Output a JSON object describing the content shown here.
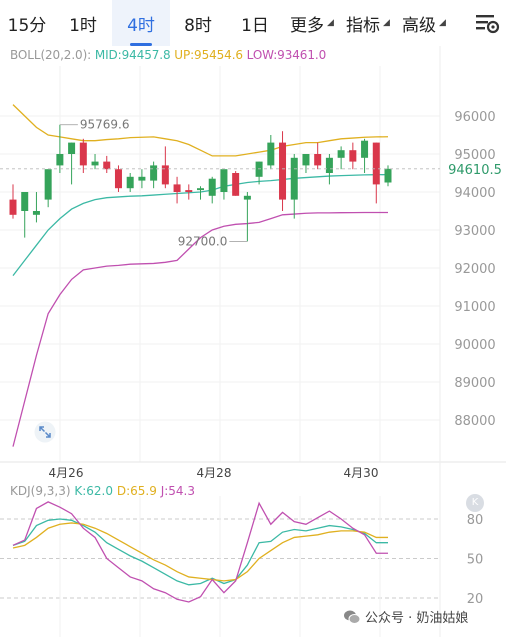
{
  "tabs": [
    {
      "label": "15分",
      "active": false,
      "dropdown": false
    },
    {
      "label": "1时",
      "active": false,
      "dropdown": false
    },
    {
      "label": "4时",
      "active": true,
      "dropdown": false
    },
    {
      "label": "8时",
      "active": false,
      "dropdown": false
    },
    {
      "label": "1日",
      "active": false,
      "dropdown": false
    },
    {
      "label": "更多",
      "active": false,
      "dropdown": true
    },
    {
      "label": "指标",
      "active": false,
      "dropdown": true
    },
    {
      "label": "高级",
      "active": false,
      "dropdown": true
    }
  ],
  "settings_icon": "chart-settings-icon",
  "boll": {
    "name": "BOLL(20,2.0):",
    "mid": "MID:94457.8",
    "up": "UP:95454.6",
    "low": "LOW:93461.0",
    "colors": {
      "name": "#999999",
      "mid": "#3cb9a5",
      "up": "#e0b020",
      "low": "#c050b0"
    }
  },
  "kdj": {
    "name": "KDJ(9,3,3)",
    "k": "K:62.0",
    "d": "D:65.9",
    "j": "J:54.3",
    "colors": {
      "k": "#3cb9a5",
      "d": "#e0b020",
      "j": "#c050b0"
    }
  },
  "price_axis": {
    "labels": [
      "96000",
      "95000",
      "94000",
      "93000",
      "92000",
      "91000",
      "90000",
      "89000",
      "88000"
    ]
  },
  "kdj_axis": {
    "labels": [
      "80",
      "50",
      "20"
    ]
  },
  "date_labels": [
    "4月26",
    "4月28",
    "4月30"
  ],
  "annotations": {
    "high": "95769.6",
    "low": "92700.0"
  },
  "current_price": "94610.5",
  "watermark": {
    "text": "公众号 · 奶油姑娘",
    "icon": "wechat-icon"
  },
  "colors": {
    "up": "#35a35a",
    "down": "#d9374b",
    "accent": "#2f6fe0"
  },
  "chart_data": [
    {
      "type": "candlestick",
      "title": "",
      "ylim": [
        87500,
        96400
      ],
      "x_ticks": [
        "4月26",
        "4月28",
        "4月30"
      ],
      "candles": [
        {
          "o": 93800,
          "h": 94200,
          "l": 93300,
          "c": 93400
        },
        {
          "o": 93500,
          "h": 94000,
          "l": 92800,
          "c": 94000
        },
        {
          "o": 93400,
          "h": 94000,
          "l": 93200,
          "c": 93500
        },
        {
          "o": 93800,
          "h": 94600,
          "l": 93600,
          "c": 94600
        },
        {
          "o": 94700,
          "h": 95770,
          "l": 94500,
          "c": 95000
        },
        {
          "o": 95000,
          "h": 95300,
          "l": 94200,
          "c": 95300
        },
        {
          "o": 95300,
          "h": 95400,
          "l": 94500,
          "c": 94700
        },
        {
          "o": 94700,
          "h": 95000,
          "l": 94600,
          "c": 94800
        },
        {
          "o": 94800,
          "h": 94950,
          "l": 94500,
          "c": 94600
        },
        {
          "o": 94600,
          "h": 94700,
          "l": 94000,
          "c": 94100
        },
        {
          "o": 94100,
          "h": 94500,
          "l": 94000,
          "c": 94400
        },
        {
          "o": 94300,
          "h": 94600,
          "l": 94100,
          "c": 94400
        },
        {
          "o": 94300,
          "h": 94800,
          "l": 94100,
          "c": 94700
        },
        {
          "o": 94700,
          "h": 95200,
          "l": 94100,
          "c": 94200
        },
        {
          "o": 94200,
          "h": 94400,
          "l": 93700,
          "c": 94000
        },
        {
          "o": 94050,
          "h": 94200,
          "l": 93800,
          "c": 94000
        },
        {
          "o": 94050,
          "h": 94150,
          "l": 93800,
          "c": 94100
        },
        {
          "o": 93900,
          "h": 94400,
          "l": 93700,
          "c": 94350
        },
        {
          "o": 94000,
          "h": 94600,
          "l": 93800,
          "c": 94600
        },
        {
          "o": 94500,
          "h": 94550,
          "l": 93900,
          "c": 93900
        },
        {
          "o": 93800,
          "h": 94000,
          "l": 92700,
          "c": 93900
        },
        {
          "o": 94400,
          "h": 94800,
          "l": 94200,
          "c": 94800
        },
        {
          "o": 94700,
          "h": 95500,
          "l": 94600,
          "c": 95300
        },
        {
          "o": 95300,
          "h": 95600,
          "l": 93500,
          "c": 93800
        },
        {
          "o": 93800,
          "h": 95000,
          "l": 93300,
          "c": 94900
        },
        {
          "o": 94700,
          "h": 95000,
          "l": 94500,
          "c": 95000
        },
        {
          "o": 95000,
          "h": 95300,
          "l": 94600,
          "c": 94700
        },
        {
          "o": 94500,
          "h": 95000,
          "l": 94200,
          "c": 94900
        },
        {
          "o": 94900,
          "h": 95200,
          "l": 94600,
          "c": 95100
        },
        {
          "o": 95100,
          "h": 95300,
          "l": 94600,
          "c": 94800
        },
        {
          "o": 94900,
          "h": 95400,
          "l": 94500,
          "c": 95350
        },
        {
          "o": 95300,
          "h": 95300,
          "l": 93700,
          "c": 94200
        },
        {
          "o": 94250,
          "h": 94700,
          "l": 94150,
          "c": 94610
        }
      ],
      "boll_up": [
        96300,
        96000,
        95700,
        95500,
        95450,
        95400,
        95350,
        95350,
        95380,
        95400,
        95430,
        95440,
        95450,
        95400,
        95350,
        95250,
        95100,
        94950,
        94950,
        94950,
        95000,
        95050,
        95100,
        95200,
        95250,
        95300,
        95300,
        95350,
        95400,
        95420,
        95440,
        95450,
        95454
      ],
      "boll_mid": [
        91800,
        92200,
        92600,
        93000,
        93300,
        93550,
        93700,
        93800,
        93850,
        93870,
        93890,
        93900,
        93920,
        93940,
        93960,
        93980,
        94000,
        94050,
        94150,
        94200,
        94250,
        94280,
        94300,
        94330,
        94360,
        94380,
        94400,
        94420,
        94430,
        94440,
        94450,
        94455,
        94458
      ],
      "boll_low": [
        87300,
        88500,
        89700,
        90800,
        91300,
        91700,
        91950,
        92000,
        92050,
        92070,
        92100,
        92110,
        92120,
        92150,
        92200,
        92500,
        92800,
        93000,
        93100,
        93150,
        93170,
        93200,
        93300,
        93400,
        93420,
        93440,
        93450,
        93450,
        93455,
        93458,
        93460,
        93461,
        93461
      ],
      "price_ticks": [
        96000,
        95000,
        94000,
        93000,
        92000,
        91000,
        90000,
        89000,
        88000
      ]
    },
    {
      "type": "line",
      "title": "KDJ(9,3,3)",
      "ylim": [
        15,
        100
      ],
      "series": [
        {
          "name": "K",
          "values": [
            60,
            63,
            75,
            79,
            80,
            79,
            75,
            70,
            62,
            57,
            52,
            48,
            43,
            38,
            33,
            30,
            31,
            35,
            31,
            34,
            45,
            62,
            63,
            70,
            72,
            71,
            73,
            75,
            74,
            72,
            69,
            62,
            62
          ]
        },
        {
          "name": "D",
          "values": [
            58,
            60,
            66,
            73,
            76,
            77,
            76,
            73,
            69,
            64,
            59,
            54,
            49,
            45,
            40,
            36,
            35,
            34,
            33,
            34,
            40,
            50,
            56,
            62,
            66,
            67,
            68,
            70,
            71,
            71,
            70,
            66,
            66
          ]
        },
        {
          "name": "J",
          "values": [
            60,
            64,
            88,
            93,
            89,
            84,
            73,
            66,
            50,
            43,
            36,
            33,
            27,
            24,
            19,
            17,
            21,
            34,
            24,
            33,
            62,
            92,
            76,
            85,
            78,
            76,
            81,
            86,
            80,
            73,
            68,
            54,
            54
          ]
        }
      ],
      "yticks": [
        80,
        50,
        20
      ]
    }
  ]
}
